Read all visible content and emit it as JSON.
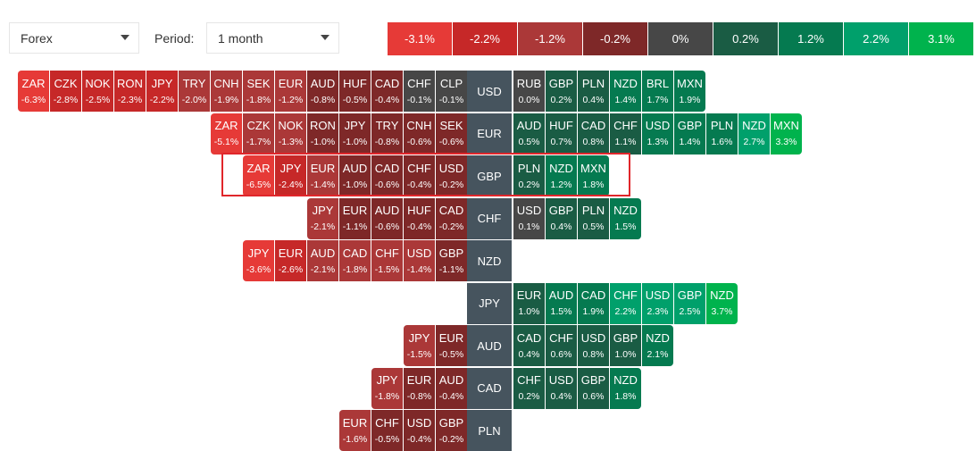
{
  "controls": {
    "market_select": "Forex",
    "period_label": "Period:",
    "period_select": "1 month"
  },
  "legend": [
    {
      "label": "-3.1%",
      "color": "#e63a37"
    },
    {
      "label": "-2.2%",
      "color": "#c62828"
    },
    {
      "label": "-1.2%",
      "color": "#ab3838"
    },
    {
      "label": "-0.2%",
      "color": "#7e2828"
    },
    {
      "label": "0%",
      "color": "#474747"
    },
    {
      "label": "0.2%",
      "color": "#1a5c44"
    },
    {
      "label": "1.2%",
      "color": "#057a50"
    },
    {
      "label": "2.2%",
      "color": "#00a06b"
    },
    {
      "label": "3.1%",
      "color": "#00b34d"
    }
  ],
  "highlighted_row": "GBP",
  "rows": [
    {
      "base": "USD",
      "left": [
        [
          "ZAR",
          "-6.3%"
        ],
        [
          "CZK",
          "-2.8%"
        ],
        [
          "NOK",
          "-2.5%"
        ],
        [
          "RON",
          "-2.3%"
        ],
        [
          "JPY",
          "-2.2%"
        ],
        [
          "TRY",
          "-2.0%"
        ],
        [
          "CNH",
          "-1.9%"
        ],
        [
          "SEK",
          "-1.8%"
        ],
        [
          "EUR",
          "-1.2%"
        ],
        [
          "AUD",
          "-0.8%"
        ],
        [
          "HUF",
          "-0.5%"
        ],
        [
          "CAD",
          "-0.4%"
        ],
        [
          "CHF",
          "-0.1%"
        ],
        [
          "CLP",
          "-0.1%"
        ]
      ],
      "right": [
        [
          "RUB",
          "0.0%"
        ],
        [
          "GBP",
          "0.2%"
        ],
        [
          "PLN",
          "0.4%"
        ],
        [
          "NZD",
          "1.4%"
        ],
        [
          "BRL",
          "1.7%"
        ],
        [
          "MXN",
          "1.9%"
        ]
      ]
    },
    {
      "base": "EUR",
      "left": [
        [
          "ZAR",
          "-5.1%"
        ],
        [
          "CZK",
          "-1.7%"
        ],
        [
          "NOK",
          "-1.3%"
        ],
        [
          "RON",
          "-1.0%"
        ],
        [
          "JPY",
          "-1.0%"
        ],
        [
          "TRY",
          "-0.8%"
        ],
        [
          "CNH",
          "-0.6%"
        ],
        [
          "SEK",
          "-0.6%"
        ]
      ],
      "right": [
        [
          "AUD",
          "0.5%"
        ],
        [
          "HUF",
          "0.7%"
        ],
        [
          "CAD",
          "0.8%"
        ],
        [
          "CHF",
          "1.1%"
        ],
        [
          "USD",
          "1.3%"
        ],
        [
          "GBP",
          "1.4%"
        ],
        [
          "PLN",
          "1.6%"
        ],
        [
          "NZD",
          "2.7%"
        ],
        [
          "MXN",
          "3.3%"
        ]
      ]
    },
    {
      "base": "GBP",
      "left": [
        [
          "ZAR",
          "-6.5%"
        ],
        [
          "JPY",
          "-2.4%"
        ],
        [
          "EUR",
          "-1.4%"
        ],
        [
          "AUD",
          "-1.0%"
        ],
        [
          "CAD",
          "-0.6%"
        ],
        [
          "CHF",
          "-0.4%"
        ],
        [
          "USD",
          "-0.2%"
        ]
      ],
      "right": [
        [
          "PLN",
          "0.2%"
        ],
        [
          "NZD",
          "1.2%"
        ],
        [
          "MXN",
          "1.8%"
        ]
      ]
    },
    {
      "base": "CHF",
      "left": [
        [
          "JPY",
          "-2.1%"
        ],
        [
          "EUR",
          "-1.1%"
        ],
        [
          "AUD",
          "-0.6%"
        ],
        [
          "HUF",
          "-0.4%"
        ],
        [
          "CAD",
          "-0.2%"
        ]
      ],
      "right": [
        [
          "USD",
          "0.1%"
        ],
        [
          "GBP",
          "0.4%"
        ],
        [
          "PLN",
          "0.5%"
        ],
        [
          "NZD",
          "1.5%"
        ]
      ]
    },
    {
      "base": "NZD",
      "left": [
        [
          "JPY",
          "-3.6%"
        ],
        [
          "EUR",
          "-2.6%"
        ],
        [
          "AUD",
          "-2.1%"
        ],
        [
          "CAD",
          "-1.8%"
        ],
        [
          "CHF",
          "-1.5%"
        ],
        [
          "USD",
          "-1.4%"
        ],
        [
          "GBP",
          "-1.1%"
        ]
      ],
      "right": []
    },
    {
      "base": "JPY",
      "left": [],
      "right": [
        [
          "EUR",
          "1.0%"
        ],
        [
          "AUD",
          "1.5%"
        ],
        [
          "CAD",
          "1.9%"
        ],
        [
          "CHF",
          "2.2%"
        ],
        [
          "USD",
          "2.3%"
        ],
        [
          "GBP",
          "2.5%"
        ],
        [
          "NZD",
          "3.7%"
        ]
      ]
    },
    {
      "base": "AUD",
      "left": [
        [
          "JPY",
          "-1.5%"
        ],
        [
          "EUR",
          "-0.5%"
        ]
      ],
      "right": [
        [
          "CAD",
          "0.4%"
        ],
        [
          "CHF",
          "0.6%"
        ],
        [
          "USD",
          "0.8%"
        ],
        [
          "GBP",
          "1.0%"
        ],
        [
          "NZD",
          "2.1%"
        ]
      ]
    },
    {
      "base": "CAD",
      "left": [
        [
          "JPY",
          "-1.8%"
        ],
        [
          "EUR",
          "-0.8%"
        ],
        [
          "AUD",
          "-0.4%"
        ]
      ],
      "right": [
        [
          "CHF",
          "0.2%"
        ],
        [
          "USD",
          "0.4%"
        ],
        [
          "GBP",
          "0.6%"
        ],
        [
          "NZD",
          "1.8%"
        ]
      ]
    },
    {
      "base": "PLN",
      "left": [
        [
          "EUR",
          "-1.6%"
        ],
        [
          "CHF",
          "-0.5%"
        ],
        [
          "USD",
          "-0.4%"
        ],
        [
          "GBP",
          "-0.2%"
        ]
      ],
      "right": []
    }
  ]
}
